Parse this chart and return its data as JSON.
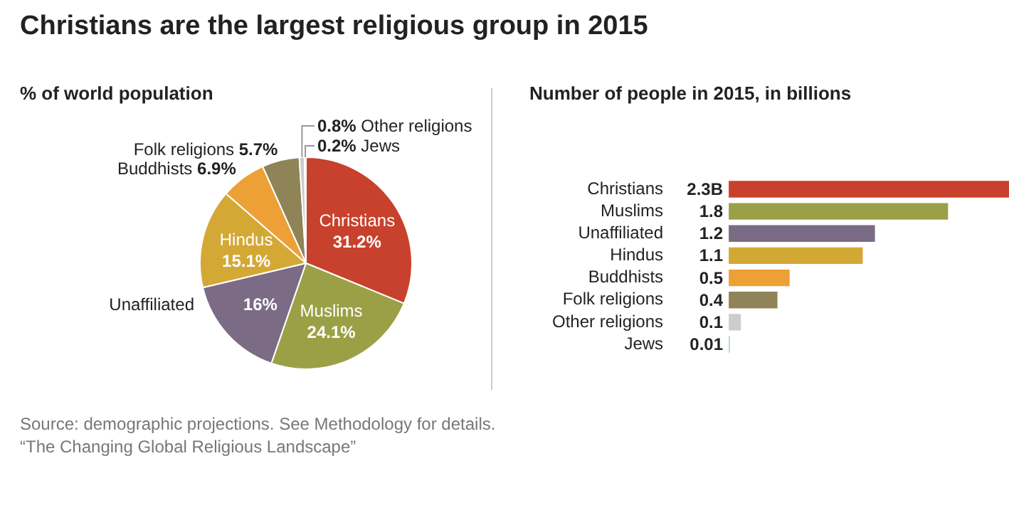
{
  "chart_data": [
    {
      "type": "pie",
      "title": "Christians are the largest religious group in 2015",
      "subtitle": "% of world population",
      "categories": [
        "Christians",
        "Muslims",
        "Unaffiliated",
        "Hindus",
        "Buddhists",
        "Folk religions",
        "Other religions",
        "Jews"
      ],
      "values": [
        31.2,
        24.1,
        16,
        15.1,
        6.9,
        5.7,
        0.8,
        0.2
      ],
      "value_labels": [
        "31.2%",
        "24.1%",
        "16%",
        "15.1%",
        "6.9%",
        "5.7%",
        "0.8%",
        "0.2%"
      ],
      "colors": [
        "#c8412c",
        "#9ba046",
        "#7b6b85",
        "#d4a835",
        "#eda035",
        "#8e8457",
        "#cccccc",
        "#a9cde0"
      ],
      "annotations": [
        "Source: demographic projections. See Methodology for details.",
        "“The Changing Global Religious Landscape”"
      ]
    },
    {
      "type": "bar",
      "orientation": "horizontal",
      "title": "Number of people in 2015, in billions",
      "categories": [
        "Christians",
        "Muslims",
        "Unaffiliated",
        "Hindus",
        "Buddhists",
        "Folk religions",
        "Other religions",
        "Jews"
      ],
      "values": [
        2.3,
        1.8,
        1.2,
        1.1,
        0.5,
        0.4,
        0.1,
        0.01
      ],
      "value_labels": [
        "2.3B",
        "1.8",
        "1.2",
        "1.1",
        "0.5",
        "0.4",
        "0.1",
        "0.01"
      ],
      "colors": [
        "#c8412c",
        "#9ba046",
        "#7b6b85",
        "#d4a835",
        "#eda035",
        "#8e8457",
        "#cccccc",
        "#a9cde0"
      ]
    }
  ]
}
